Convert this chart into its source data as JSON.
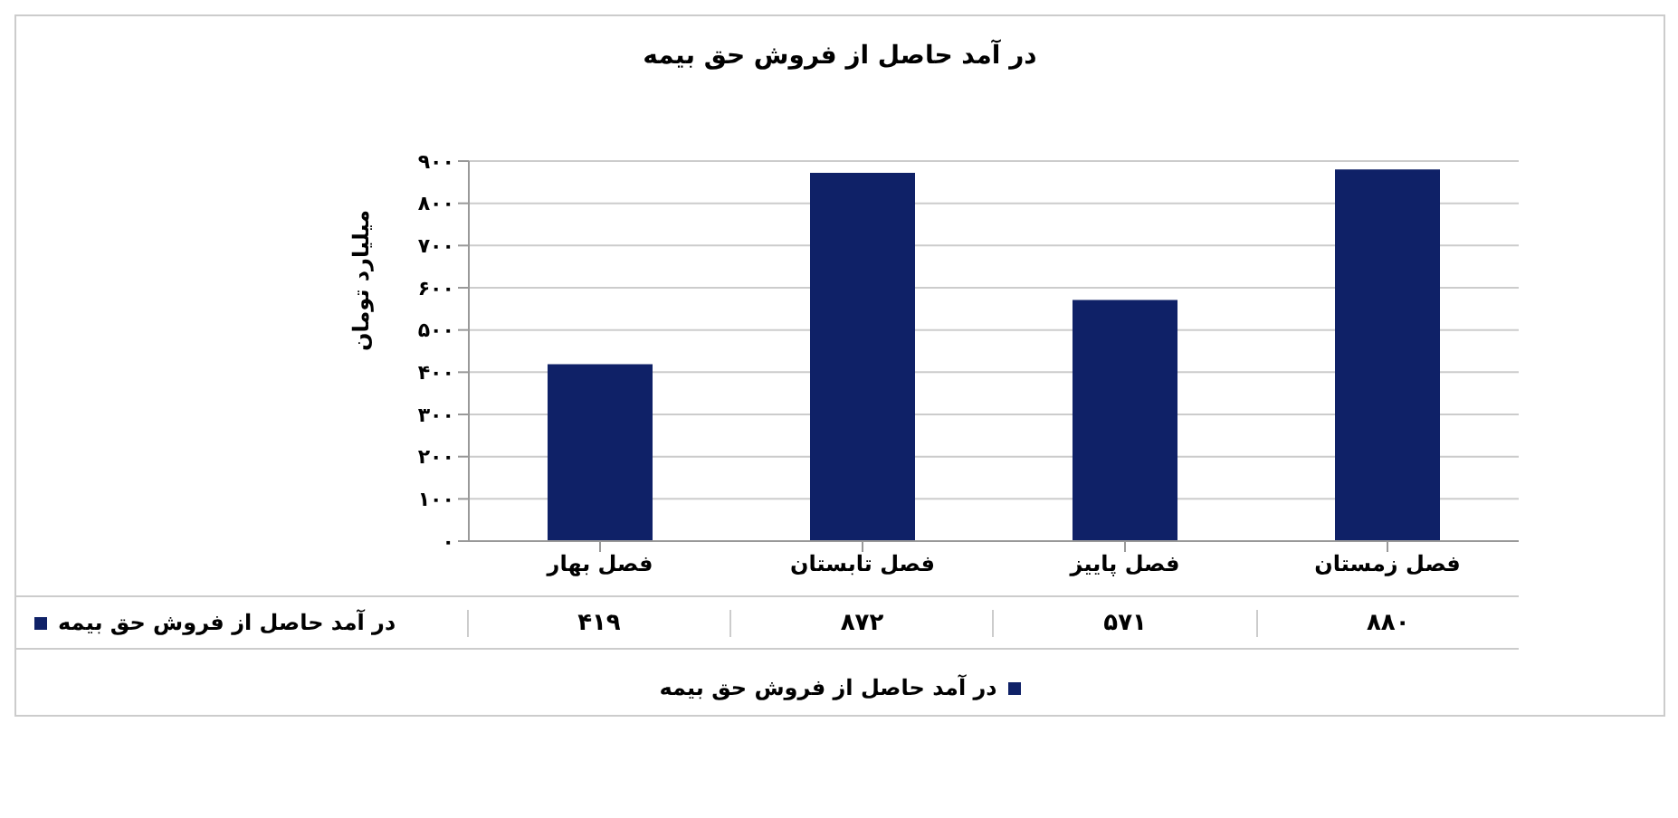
{
  "chart_data": {
    "type": "bar",
    "title": "در آمد حاصل از فروش حق بیمه",
    "ylabel": "میلیارد تومان",
    "categories": [
      "فصل بهار",
      "فصل تابستان",
      "فصل پاییز",
      "فصل زمستان"
    ],
    "series": [
      {
        "name": "در آمد حاصل از فروش حق بیمه",
        "color": "#0f2167",
        "values": [
          419,
          872,
          571,
          880
        ],
        "value_labels": [
          "۴۱۹",
          "۸۷۲",
          "۵۷۱",
          "۸۸۰"
        ]
      }
    ],
    "ylim": [
      0,
      900
    ],
    "yticks": [
      {
        "value": 0,
        "label": "۰"
      },
      {
        "value": 100,
        "label": "۱۰۰"
      },
      {
        "value": 200,
        "label": "۲۰۰"
      },
      {
        "value": 300,
        "label": "۳۰۰"
      },
      {
        "value": 400,
        "label": "۴۰۰"
      },
      {
        "value": 500,
        "label": "۵۰۰"
      },
      {
        "value": 600,
        "label": "۶۰۰"
      },
      {
        "value": 700,
        "label": "۷۰۰"
      },
      {
        "value": 800,
        "label": "۸۰۰"
      },
      {
        "value": 900,
        "label": "۹۰۰"
      }
    ],
    "grid": "y",
    "legend": "bottom"
  }
}
